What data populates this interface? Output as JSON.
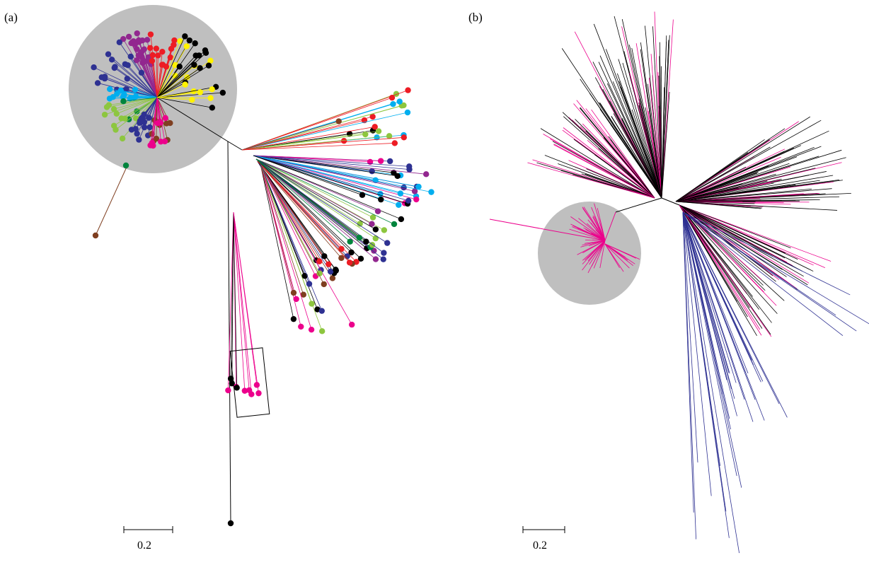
{
  "panels": [
    {
      "id": "a",
      "label": "(a)",
      "scale_bar_label": "0.2",
      "highlighted_clade_fill": "#bfbfbf",
      "clade_colors": [
        "#2e3192",
        "#92278f",
        "#ed1c24",
        "#00aeef",
        "#ec008c",
        "#00843d",
        "#fff200",
        "#000000",
        "#7f3f20",
        "#8dc63f"
      ]
    },
    {
      "id": "b",
      "label": "(b)",
      "scale_bar_label": "0.2",
      "highlighted_clade_fill": "#bfbfbf",
      "clade_colors": [
        "#000000",
        "#ec008c",
        "#2e3192"
      ]
    }
  ]
}
